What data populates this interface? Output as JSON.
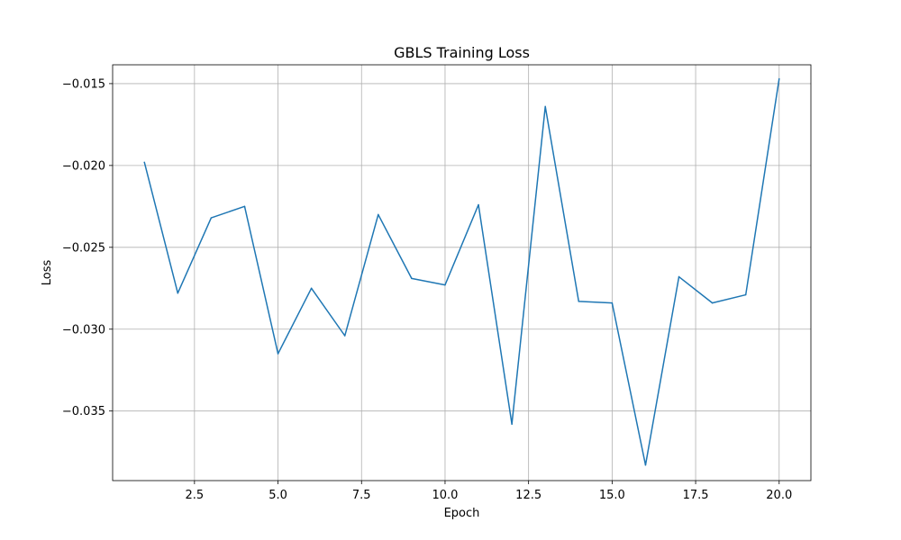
{
  "chart_data": {
    "type": "line",
    "title": "GBLS Training Loss",
    "xlabel": "Epoch",
    "ylabel": "Loss",
    "xlim": [
      0.05,
      20.95
    ],
    "ylim": [
      -0.03925,
      -0.01385
    ],
    "xticks": [
      2.5,
      5.0,
      7.5,
      10.0,
      12.5,
      15.0,
      17.5,
      20.0
    ],
    "xtick_labels": [
      "2.5",
      "5.0",
      "7.5",
      "10.0",
      "12.5",
      "15.0",
      "17.5",
      "20.0"
    ],
    "yticks": [
      -0.035,
      -0.03,
      -0.025,
      -0.02,
      -0.015
    ],
    "ytick_labels": [
      "−0.035",
      "−0.030",
      "−0.025",
      "−0.020",
      "−0.015"
    ],
    "grid": true,
    "series": [
      {
        "color": "#1f77b4",
        "x": [
          1,
          2,
          3,
          4,
          5,
          6,
          7,
          8,
          9,
          10,
          11,
          12,
          13,
          14,
          15,
          16,
          17,
          18,
          19,
          20
        ],
        "y": [
          -0.0198,
          -0.0278,
          -0.0232,
          -0.0225,
          -0.0315,
          -0.0275,
          -0.0304,
          -0.023,
          -0.0269,
          -0.0273,
          -0.0224,
          -0.0358,
          -0.0164,
          -0.0283,
          -0.0284,
          -0.0383,
          -0.0268,
          -0.0284,
          -0.0279,
          -0.0147
        ]
      }
    ]
  }
}
